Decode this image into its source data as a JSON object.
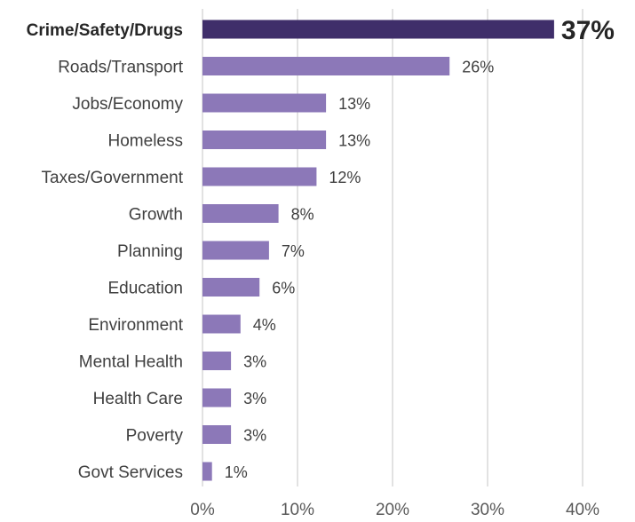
{
  "chart_data": {
    "type": "bar",
    "orientation": "horizontal",
    "categories": [
      "Crime/Safety/Drugs",
      "Roads/Transport",
      "Jobs/Economy",
      "Homeless",
      "Taxes/Government",
      "Growth",
      "Planning",
      "Education",
      "Environment",
      "Mental Health",
      "Health Care",
      "Poverty",
      "Govt Services"
    ],
    "values": [
      37,
      26,
      13,
      13,
      12,
      8,
      7,
      6,
      4,
      3,
      3,
      3,
      1
    ],
    "value_labels": [
      "37%",
      "26%",
      "13%",
      "13%",
      "12%",
      "8%",
      "7%",
      "6%",
      "4%",
      "3%",
      "3%",
      "3%",
      "1%"
    ],
    "highlight_index": 0,
    "xlim": [
      0,
      40
    ],
    "x_ticks": [
      0,
      10,
      20,
      30,
      40
    ],
    "x_tick_labels": [
      "0%",
      "10%",
      "20%",
      "30%",
      "40%"
    ],
    "grid": "vertical",
    "title": "",
    "xlabel": "",
    "ylabel": ""
  },
  "colors": {
    "bar": "#8c78b8",
    "highlight_bar": "#3f2e6a",
    "grid": "#d9d9d9"
  }
}
